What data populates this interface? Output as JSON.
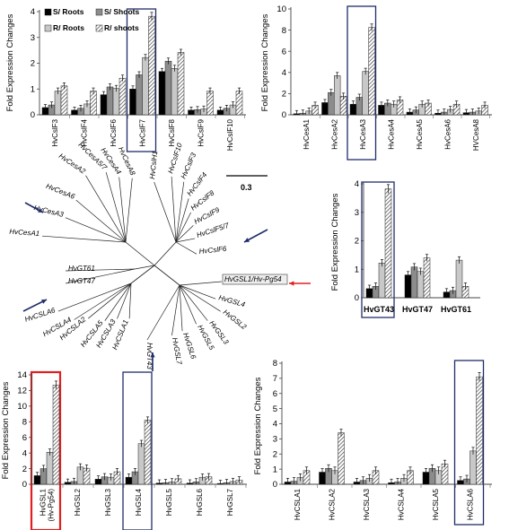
{
  "legend": {
    "s_roots": "S/ Roots",
    "s_shoots": "S/ Shoots",
    "r_roots": "R/ Roots",
    "r_shoots": "R/ shoots"
  },
  "tree": {
    "scale_label": "0.3",
    "leaves": [
      "HvCslH1",
      "HvCslF10",
      "HvCslF3",
      "HvCslF4",
      "HvCslF8",
      "HvCslF9",
      "HvCslF5/7",
      "HvCslF6",
      "HvCesA8",
      "HvCesA4",
      "HvCesA5/7",
      "HvCesA2",
      "HvCesA6",
      "HvCesA3",
      "HvCesA1",
      "HvGT61",
      "HvGT47",
      "HvGSL1/Hv-Pg54",
      "HvGSL4",
      "HvGSL2",
      "HvGSL3",
      "HvGSL5",
      "HvGSL6",
      "HvGSL7",
      "HvGT43",
      "HvCSLA1",
      "HvCSLA3",
      "HvCSLA5",
      "HvCSLA2",
      "HvCSLA4",
      "HvCSLA6"
    ]
  },
  "colors": {
    "s_roots": "#000000",
    "s_shoots": "#8c8c8c",
    "r_roots": "#c8c8c8",
    "r_shoots": "hatched",
    "highlight_blue": "#1f2d6b",
    "highlight_red": "#e02020",
    "arrow_blue": "#1f2d6b",
    "arrow_red": "#e02020"
  },
  "chart_data": [
    {
      "id": "csl",
      "type": "bar",
      "ylabel": "Fold Expression Changes",
      "ylim": [
        0,
        4
      ],
      "yticks": [
        "0",
        "1",
        "2",
        "3",
        "4"
      ],
      "categories": [
        "HvCslF3",
        "HvCslF4",
        "HvCslF6",
        "HvCslF7",
        "HvCslF8",
        "HvCslF9",
        "HvCslF10"
      ],
      "series": [
        {
          "name": "S/ Roots",
          "values": [
            0.28,
            0.18,
            0.78,
            1.0,
            1.68,
            0.18,
            0.18
          ]
        },
        {
          "name": "S/ Shoots",
          "values": [
            0.38,
            0.25,
            1.08,
            1.55,
            2.08,
            0.2,
            0.25
          ]
        },
        {
          "name": "R/ Roots",
          "values": [
            0.92,
            0.42,
            1.02,
            2.22,
            1.8,
            0.22,
            0.38
          ]
        },
        {
          "name": "R/ shoots",
          "values": [
            1.12,
            0.92,
            1.42,
            3.82,
            2.42,
            0.92,
            0.92
          ]
        }
      ],
      "highlight": [
        {
          "index": 3,
          "color": "blue"
        }
      ],
      "legend": "top-left"
    },
    {
      "id": "cesa",
      "type": "bar",
      "ylabel": "Fold Expression Changes",
      "ylim": [
        0,
        10
      ],
      "yticks": [
        "0",
        "2",
        "4",
        "6",
        "8",
        "10"
      ],
      "categories": [
        "HvCesA1",
        "HvCesA2",
        "HvCesA3",
        "HvCesA4",
        "HvCesA5",
        "HvCesA6",
        "HVCesA8"
      ],
      "series": [
        {
          "name": "S/ Roots",
          "values": [
            0.1,
            1.15,
            1.0,
            0.9,
            0.25,
            0.15,
            0.2
          ]
        },
        {
          "name": "S/ Shoots",
          "values": [
            0.15,
            2.1,
            1.65,
            1.1,
            0.45,
            0.25,
            0.25
          ]
        },
        {
          "name": "R/ Roots",
          "values": [
            0.35,
            3.7,
            4.1,
            1.0,
            1.0,
            0.5,
            0.35
          ]
        },
        {
          "name": "R/ shoots",
          "values": [
            0.9,
            1.75,
            8.25,
            1.4,
            1.1,
            1.0,
            0.9
          ]
        }
      ],
      "highlight": [
        {
          "index": 2,
          "color": "blue"
        }
      ]
    },
    {
      "id": "gt",
      "type": "bar",
      "ylabel": "Fold Expression Changes",
      "ylim": [
        0,
        4
      ],
      "yticks": [
        "0",
        "1",
        "2",
        "3",
        "4"
      ],
      "categories": [
        "HvGT43",
        "HvGT47",
        "HvGT61"
      ],
      "series": [
        {
          "name": "S/ Roots",
          "values": [
            0.32,
            0.8,
            0.2
          ]
        },
        {
          "name": "S/ Shoots",
          "values": [
            0.4,
            1.08,
            0.25
          ]
        },
        {
          "name": "R/ Roots",
          "values": [
            1.22,
            0.92,
            1.32
          ]
        },
        {
          "name": "R/ shoots",
          "values": [
            3.82,
            1.4,
            0.4
          ]
        }
      ],
      "highlight": [
        {
          "index": 0,
          "color": "blue"
        }
      ]
    },
    {
      "id": "gsl",
      "type": "bar",
      "ylabel": "Fold Expression Changes",
      "ylim": [
        0,
        14
      ],
      "yticks": [
        "0",
        "2",
        "4",
        "6",
        "8",
        "10",
        "12",
        "14"
      ],
      "categories": [
        "HvGSL1\n(Hv-Pg54)",
        "HvGSL2",
        "HvGSL3",
        "HvGSL4",
        "HvGSL5",
        "HvGSL6",
        "HvGSL7"
      ],
      "series": [
        {
          "name": "S/ Roots",
          "values": [
            1.1,
            0.25,
            0.65,
            0.9,
            0.15,
            0.15,
            0.1
          ]
        },
        {
          "name": "S/ Shoots",
          "values": [
            2.0,
            0.35,
            0.95,
            1.6,
            0.2,
            0.3,
            0.2
          ]
        },
        {
          "name": "R/ Roots",
          "values": [
            4.1,
            2.2,
            0.9,
            5.2,
            0.3,
            0.9,
            0.35
          ]
        },
        {
          "name": "R/ shoots",
          "values": [
            12.7,
            2.05,
            1.6,
            8.2,
            0.7,
            0.95,
            0.55
          ]
        }
      ],
      "highlight": [
        {
          "index": 0,
          "color": "red"
        },
        {
          "index": 3,
          "color": "blue"
        }
      ]
    },
    {
      "id": "csla",
      "type": "bar",
      "ylabel": "Fold Expression Changes",
      "ylim": [
        0,
        8
      ],
      "yticks": [
        "0",
        "1",
        "2",
        "3",
        "4",
        "5",
        "6",
        "7",
        "8"
      ],
      "categories": [
        "HvCSLA1",
        "HvCSLA2",
        "HvCSLA3",
        "HvCSLA4",
        "HvCSLA5",
        "HvCSLA6"
      ],
      "series": [
        {
          "name": "S/ Roots",
          "values": [
            0.15,
            0.8,
            0.15,
            0.1,
            0.8,
            0.25
          ]
        },
        {
          "name": "S/ Shoots",
          "values": [
            0.2,
            1.05,
            0.25,
            0.15,
            1.05,
            0.35
          ]
        },
        {
          "name": "R/ Roots",
          "values": [
            0.45,
            0.9,
            0.4,
            0.4,
            0.9,
            2.2
          ]
        },
        {
          "name": "R/ shoots",
          "values": [
            0.9,
            3.4,
            0.9,
            0.9,
            1.35,
            7.1
          ]
        }
      ],
      "highlight": [
        {
          "index": 5,
          "color": "blue"
        }
      ]
    }
  ]
}
